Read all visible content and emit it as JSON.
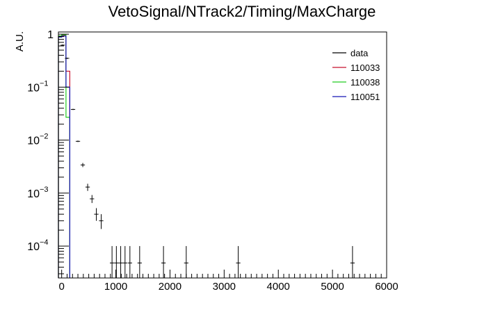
{
  "chart_data": {
    "type": "histogram",
    "title": "VetoSignal/NTrack2/Timing/MaxCharge",
    "xlabel": "",
    "ylabel": "A.U.",
    "xlim": [
      -60,
      6000
    ],
    "ylim_log": [
      2.5e-05,
      1.1
    ],
    "y_scale": "log",
    "x_ticks": [
      "0",
      "1000",
      "2000",
      "3000",
      "4000",
      "5000",
      "6000"
    ],
    "y_ticks": [
      {
        "base": "1",
        "exp": ""
      },
      {
        "base": "10",
        "exp": "−1"
      },
      {
        "base": "10",
        "exp": "−2"
      },
      {
        "base": "10",
        "exp": "−3"
      },
      {
        "base": "10",
        "exp": "−4"
      }
    ],
    "legend_position": "top-right",
    "legend": [
      {
        "label": "data",
        "color": "#000000"
      },
      {
        "label": "110033",
        "color": "#c8102e"
      },
      {
        "label": "110038",
        "color": "#22cc22"
      },
      {
        "label": "110051",
        "color": "#1414b4"
      }
    ],
    "data_points": [
      {
        "x": 20,
        "y": 0.62,
        "ylo": 0.6,
        "yhi": 0.64
      },
      {
        "x": 100,
        "y": 0.35,
        "ylo": 0.34,
        "yhi": 0.36
      },
      {
        "x": 210,
        "y": 0.038,
        "ylo": 0.037,
        "yhi": 0.039
      },
      {
        "x": 300,
        "y": 0.0095,
        "ylo": 0.0092,
        "yhi": 0.0098
      },
      {
        "x": 390,
        "y": 0.0034,
        "ylo": 0.0031,
        "yhi": 0.0037
      },
      {
        "x": 480,
        "y": 0.0013,
        "ylo": 0.0011,
        "yhi": 0.0015
      },
      {
        "x": 560,
        "y": 0.00078,
        "ylo": 0.00065,
        "yhi": 0.00092
      },
      {
        "x": 640,
        "y": 0.0004,
        "ylo": 0.0003,
        "yhi": 0.00052
      },
      {
        "x": 730,
        "y": 0.0003,
        "ylo": 0.00021,
        "yhi": 0.0004
      },
      {
        "x": 930,
        "y": 4.8e-05,
        "ylo": 2.5e-05,
        "yhi": 0.0001
      },
      {
        "x": 1010,
        "y": 4.8e-05,
        "ylo": 2.5e-05,
        "yhi": 0.0001
      },
      {
        "x": 1090,
        "y": 4.8e-05,
        "ylo": 2.5e-05,
        "yhi": 0.0001
      },
      {
        "x": 1170,
        "y": 4.8e-05,
        "ylo": 2.5e-05,
        "yhi": 0.0001
      },
      {
        "x": 1260,
        "y": 4.8e-05,
        "ylo": 2.5e-05,
        "yhi": 0.0001
      },
      {
        "x": 1440,
        "y": 4.8e-05,
        "ylo": 2.5e-05,
        "yhi": 0.0001
      },
      {
        "x": 1880,
        "y": 4.8e-05,
        "ylo": 2.5e-05,
        "yhi": 0.0001
      },
      {
        "x": 2300,
        "y": 4.8e-05,
        "ylo": 2.5e-05,
        "yhi": 0.0001
      },
      {
        "x": 3260,
        "y": 4.8e-05,
        "ylo": 2.5e-05,
        "yhi": 0.0001
      },
      {
        "x": 5370,
        "y": 4.8e-05,
        "ylo": 2.5e-05,
        "yhi": 0.0001
      }
    ],
    "data_bin_half_width": 40,
    "mc_series": [
      {
        "name": "110033",
        "color": "#c8102e",
        "bins": [
          [
            -60,
            0,
            0.9
          ],
          [
            0,
            80,
            0.95
          ],
          [
            80,
            150,
            0.2
          ]
        ]
      },
      {
        "name": "110038",
        "color": "#22cc22",
        "bins": [
          [
            -60,
            0,
            0.93
          ],
          [
            0,
            80,
            0.97
          ],
          [
            80,
            150,
            0.027
          ]
        ]
      },
      {
        "name": "110051",
        "color": "#1414b4",
        "bins": [
          [
            -60,
            0,
            0.88
          ],
          [
            0,
            80,
            0.92
          ],
          [
            80,
            150,
            0.1
          ]
        ]
      }
    ]
  }
}
